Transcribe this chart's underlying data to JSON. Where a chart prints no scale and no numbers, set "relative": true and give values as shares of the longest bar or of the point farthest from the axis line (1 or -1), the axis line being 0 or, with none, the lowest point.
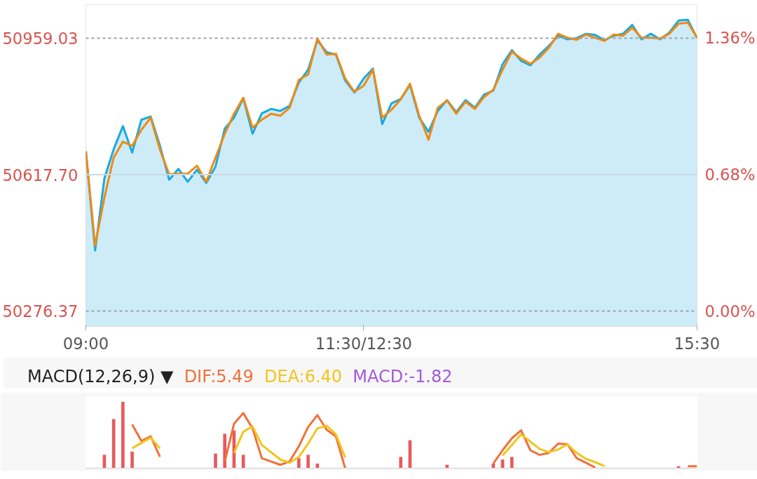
{
  "chart_data": [
    {
      "type": "line",
      "categories": [
        "09:00",
        null,
        null,
        null,
        null,
        null,
        null,
        null,
        null,
        null,
        null,
        null,
        null,
        null,
        null,
        null,
        null,
        null,
        null,
        null,
        null,
        null,
        null,
        null,
        null,
        null,
        null,
        null,
        null,
        null,
        "11:30/12:30",
        null,
        null,
        null,
        null,
        null,
        null,
        null,
        null,
        null,
        null,
        null,
        null,
        null,
        null,
        null,
        null,
        null,
        null,
        null,
        null,
        null,
        null,
        null,
        null,
        null,
        null,
        null,
        null,
        null,
        null,
        null,
        null,
        null,
        null,
        null,
        "15:30"
      ],
      "series": [
        {
          "type": "area",
          "color": "#1aa9df",
          "values": [
            50676,
            50428,
            50608,
            50681,
            50739,
            50673,
            50755,
            50763,
            50690,
            50605,
            50632,
            50600,
            50630,
            50597,
            50638,
            50733,
            50760,
            50809,
            50720,
            50771,
            50782,
            50777,
            50790,
            50848,
            50880,
            50954,
            50924,
            50918,
            50853,
            50823,
            50858,
            50883,
            50744,
            50796,
            50807,
            50842,
            50760,
            50725,
            50777,
            50804,
            50774,
            50804,
            50785,
            50818,
            50828,
            50894,
            50929,
            50902,
            50891,
            50918,
            50940,
            50965,
            50956,
            50959,
            50970,
            50967,
            50954,
            50965,
            50970,
            50992,
            50956,
            50970,
            50956,
            50973,
            51003,
            51005,
            50959
          ]
        },
        {
          "color": "#f08a12",
          "values": [
            50676,
            50440,
            50560,
            50660,
            50700,
            50690,
            50730,
            50760,
            50680,
            50618,
            50620,
            50620,
            50640,
            50600,
            50660,
            50720,
            50770,
            50810,
            50735,
            50755,
            50770,
            50765,
            50785,
            50855,
            50868,
            50958,
            50918,
            50920,
            50858,
            50825,
            50840,
            50880,
            50760,
            50780,
            50806,
            50845,
            50765,
            50705,
            50785,
            50803,
            50770,
            50800,
            50782,
            50812,
            50830,
            50880,
            50925,
            50908,
            50895,
            50910,
            50935,
            50970,
            50960,
            50955,
            50968,
            50960,
            50952,
            50968,
            50965,
            50985,
            50960,
            50960,
            50958,
            50970,
            50995,
            50998,
            50960
          ]
        }
      ],
      "ylim": [
        50238,
        51043
      ],
      "yticks": [
        50276.37,
        {
          "value": 50617.7,
          "label": "50617.70"
        },
        50959.03
      ],
      "y2lim": [
        -0.076,
        1.527
      ],
      "y2ticks": [
        {
          "value": 0,
          "label": "0.00%"
        },
        {
          "value": 0.68,
          "label": "0.68%"
        },
        {
          "value": 1.36,
          "label": "1.36%"
        }
      ],
      "ref_lines": [
        {
          "axis": "y",
          "value": 50959.03,
          "line_style": "dashed",
          "color": "#a0a0a8"
        },
        {
          "axis": "y",
          "value": 50617.7,
          "line_style": "solid",
          "color": "#c8dbe6"
        },
        {
          "axis": "y",
          "value": 50276.37,
          "line_style": "dashed",
          "color": "#a0a0a8"
        }
      ]
    },
    {
      "type": "bar",
      "title": "MACD(12,26,9) ▼",
      "relative": true,
      "categories": [
        null,
        null,
        null,
        null,
        null,
        null,
        null,
        null,
        null,
        null,
        null,
        null,
        null,
        null,
        null,
        null,
        null,
        null,
        null,
        null,
        null,
        null,
        null,
        null,
        null,
        null,
        null,
        null,
        null,
        null,
        null,
        null,
        null,
        null,
        null,
        null,
        null,
        null,
        null,
        null,
        null,
        null,
        null,
        null,
        null,
        null,
        null,
        null,
        null,
        null,
        null,
        null,
        null,
        null,
        null,
        null,
        null,
        null,
        null,
        null,
        null,
        null,
        null,
        null,
        null,
        null,
        null
      ],
      "annotations": [
        "DIF:5.49",
        "DEA:6.40",
        "MACD:-1.82"
      ],
      "series": [
        {
          "color": "#e8595c",
          "values": [
            null,
            null,
            0.2,
            0.74,
            1,
            0.25,
            null,
            null,
            null,
            null,
            null,
            null,
            null,
            null,
            0.22,
            0.52,
            0.57,
            0.2,
            null,
            null,
            null,
            null,
            null,
            0.15,
            0.2,
            0.07,
            null,
            null,
            null,
            null,
            null,
            null,
            null,
            null,
            0.17,
            0.42,
            null,
            null,
            null,
            0.05,
            null,
            null,
            null,
            null,
            0.07,
            0.13,
            0.17,
            null,
            null,
            null,
            null,
            null,
            null,
            null,
            null,
            null,
            null,
            null,
            null,
            null,
            null,
            null,
            null,
            null,
            0.03,
            null,
            null
          ]
        },
        {
          "type": "line",
          "color": "#f0703a",
          "values": [
            null,
            null,
            null,
            null,
            null,
            0.66,
            0.41,
            0.48,
            0.17,
            null,
            null,
            null,
            null,
            null,
            null,
            0.1,
            0.67,
            0.83,
            0.6,
            0.15,
            0.1,
            0.05,
            0.1,
            0.33,
            0.62,
            0.8,
            0.58,
            0.48,
            0,
            null,
            null,
            null,
            null,
            null,
            null,
            null,
            null,
            null,
            null,
            null,
            null,
            null,
            null,
            null,
            0.07,
            0.27,
            0.45,
            0.57,
            0.27,
            0.2,
            0.23,
            0.37,
            0.36,
            0.15,
            0.08,
            0.01,
            null,
            null,
            null,
            null,
            null,
            null,
            null,
            null,
            null,
            0.03,
            0.03
          ]
        },
        {
          "type": "line",
          "color": "#f2c51c",
          "values": [
            null,
            null,
            null,
            null,
            null,
            0.3,
            0.38,
            0.46,
            0.3,
            null,
            null,
            null,
            null,
            null,
            null,
            null,
            0.23,
            0.55,
            0.63,
            0.35,
            0.24,
            0.13,
            0.08,
            0.17,
            0.37,
            0.6,
            0.64,
            0.51,
            0.16,
            null,
            null,
            null,
            null,
            null,
            null,
            null,
            null,
            null,
            null,
            null,
            null,
            null,
            null,
            null,
            null,
            0.19,
            0.35,
            0.51,
            0.4,
            0.29,
            0.24,
            0.28,
            0.36,
            0.23,
            0.14,
            0.09,
            0.03,
            null,
            null,
            null,
            null,
            null,
            null,
            null,
            null,
            null,
            null
          ]
        }
      ]
    }
  ]
}
